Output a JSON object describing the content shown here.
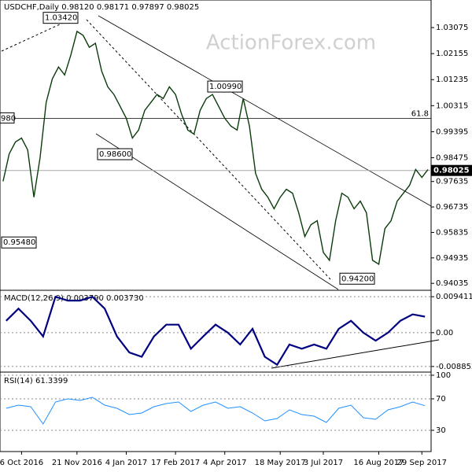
{
  "chart_data": [
    {
      "type": "line",
      "title": "USDCHF,Daily 0.98120 0.98171 0.97897 0.98025",
      "watermark": "ActionForex.com",
      "categories": [
        null,
        null,
        null,
        "6 Oct 2016",
        null,
        null,
        null,
        null,
        null,
        null,
        null,
        null,
        "21 Nov 2016",
        null,
        null,
        null,
        null,
        null,
        null,
        null,
        "4 Jan 2017",
        null,
        null,
        null,
        null,
        null,
        null,
        null,
        "17 Feb 2017",
        null,
        null,
        null,
        null,
        null,
        null,
        null,
        "4 Apr 2017",
        null,
        null,
        null,
        null,
        null,
        null,
        null,
        null,
        "18 May 2017",
        null,
        null,
        null,
        null,
        null,
        null,
        "3 Jul 2017",
        null,
        null,
        null,
        null,
        null,
        null,
        null,
        null,
        "16 Aug 2017",
        null,
        null,
        null,
        null,
        null,
        null,
        "29 Sep 2017",
        null
      ],
      "series": [
        {
          "name": "USDCHF",
          "color": "#0b3b0b",
          "values": [
            0.9764,
            0.9861,
            0.9903,
            0.9917,
            0.9875,
            0.9708,
            0.9847,
            1.0043,
            1.0126,
            1.0168,
            1.014,
            1.021,
            1.0294,
            1.028,
            1.0238,
            1.0252,
            1.0154,
            1.0098,
            1.0071,
            1.0029,
            0.9987,
            0.9917,
            0.9945,
            1.0015,
            1.0043,
            1.0071,
            1.0057,
            1.0098,
            1.0071,
            1.0001,
            0.9945,
            0.9931,
            1.0015,
            1.0057,
            1.0071,
            1.0029,
            0.9987,
            0.9959,
            0.9945,
            1.0057,
            0.9959,
            0.9792,
            0.9736,
            0.9708,
            0.9667,
            0.9708,
            0.9736,
            0.9722,
            0.9653,
            0.9569,
            0.9611,
            0.9625,
            0.9513,
            0.9485,
            0.9625,
            0.9722,
            0.9708,
            0.9667,
            0.9694,
            0.9653,
            0.9485,
            0.9471,
            0.9597,
            0.9625,
            0.9694,
            0.9722,
            0.975,
            0.9806,
            0.9778,
            0.9806
          ]
        }
      ],
      "ylim": [
        0.9379,
        1.0405
      ],
      "yticks": [
        1.03075,
        1.02155,
        1.01235,
        1.00315,
        0.99395,
        0.98475,
        0.97635,
        0.96735,
        0.95835,
        0.94935,
        0.94035
      ],
      "last_price": 0.98025,
      "fib_level": {
        "value": 0.99869,
        "label": "61.8",
        "left_label": "980"
      },
      "annotations": [
        {
          "label": "1.03420",
          "value": 1.0342
        },
        {
          "label": "0.98600",
          "value": 0.986
        },
        {
          "label": "1.00990",
          "value": 1.0099
        },
        {
          "label": "0.95480",
          "value": 0.9548
        },
        {
          "label": "0.94200",
          "value": 0.942
        }
      ]
    },
    {
      "type": "line",
      "title": "MACD(12,26,9) 0.003790 0.003730",
      "color": "#000080",
      "values": [
        0.0031,
        0.0063,
        0.0031,
        -0.001,
        0.0094,
        0.0084,
        0.0084,
        0.0094,
        0.0063,
        -0.001,
        -0.0052,
        -0.0063,
        -0.001,
        0.0021,
        0.0021,
        -0.0042,
        -0.001,
        0.0021,
        0,
        -0.0031,
        0.001,
        -0.0063,
        -0.0084,
        -0.0031,
        -0.0042,
        -0.0031,
        -0.0042,
        0.001,
        0.0031,
        0,
        -0.0021,
        0,
        0.0031,
        0.0048,
        0.0042
      ],
      "ylim": [
        -0.01032,
        0.01109
      ],
      "yticks": [
        0.009411,
        {
          "value": 0,
          "label": "0.00"
        },
        -0.008852
      ]
    },
    {
      "type": "line",
      "title": "RSI(14) 61.3399",
      "color": "#1e90ff",
      "values": [
        58,
        62,
        60,
        38,
        66,
        70,
        68,
        72,
        62,
        58,
        50,
        52,
        60,
        64,
        66,
        54,
        62,
        66,
        58,
        60,
        52,
        42,
        45,
        56,
        50,
        48,
        40,
        58,
        62,
        46,
        44,
        56,
        60,
        66,
        61.3399
      ],
      "ylim": [
        3,
        104
      ],
      "yticks": [
        100,
        70,
        30
      ]
    }
  ]
}
